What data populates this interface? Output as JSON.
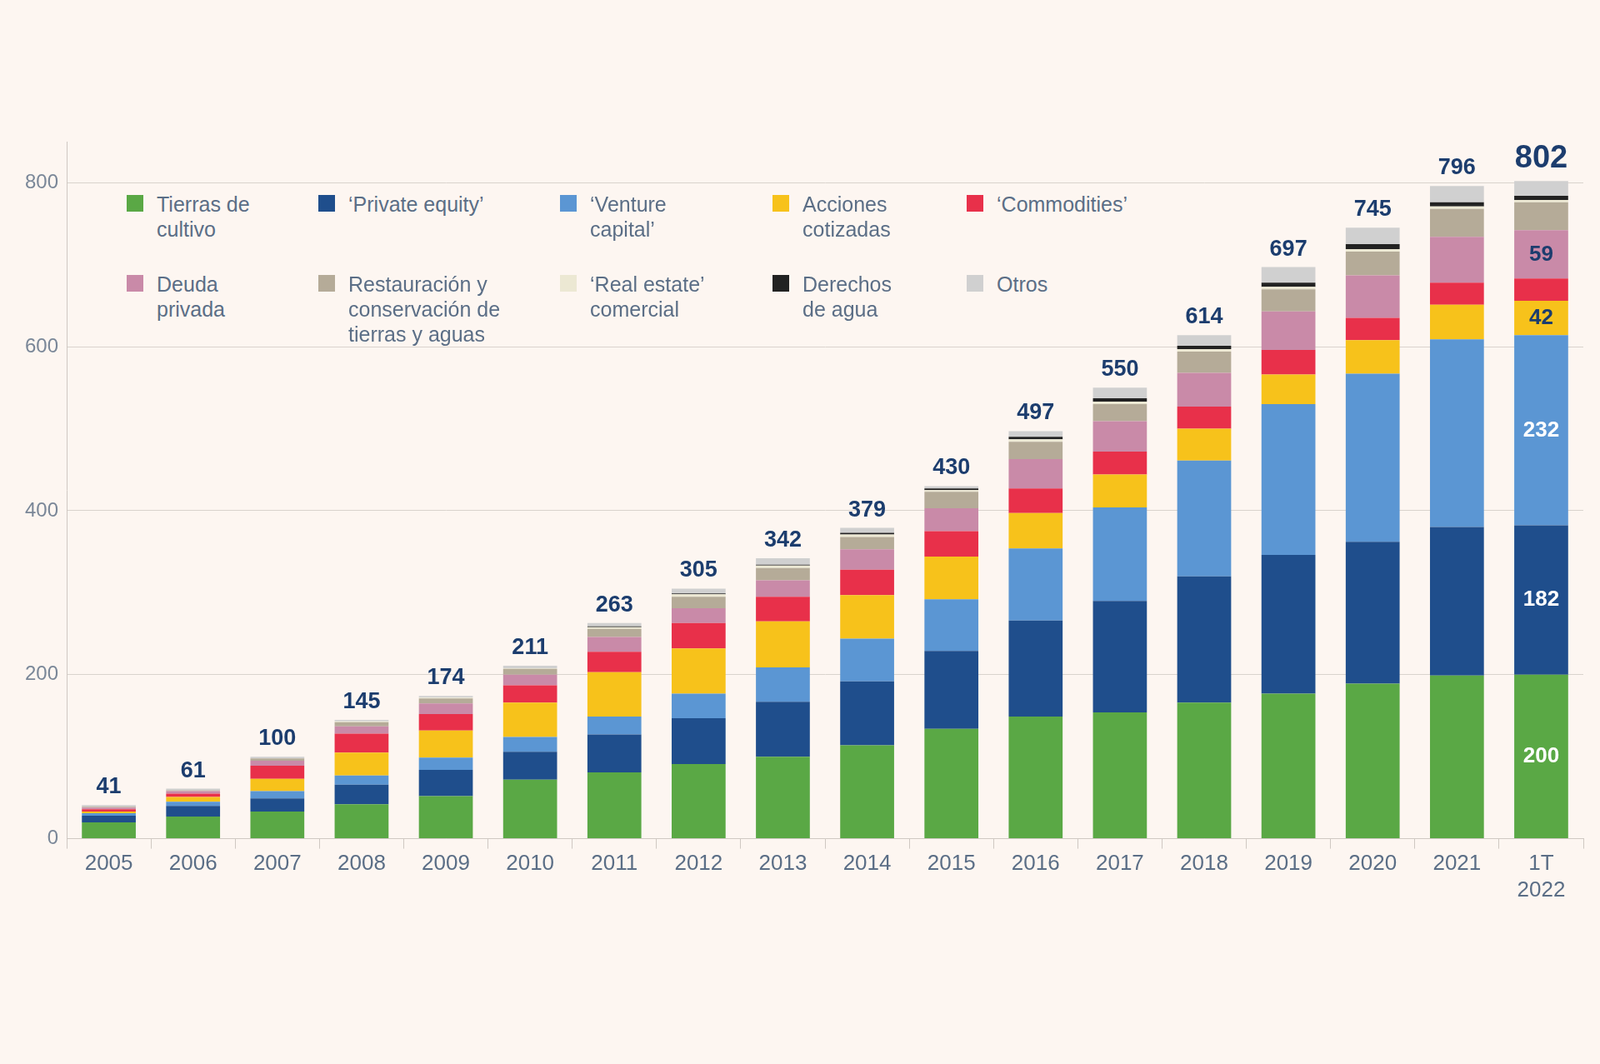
{
  "chart_data": {
    "type": "bar",
    "stacked": true,
    "grid": true,
    "legend": "upper left",
    "data_labels": true,
    "categories": [
      "2005",
      "2006",
      "2007",
      "2008",
      "2009",
      "2010",
      "2011",
      "2012",
      "2013",
      "2014",
      "2015",
      "2016",
      "2017",
      "2018",
      "2019",
      "2020",
      "2021",
      "1T 2022"
    ],
    "ylim": [
      0,
      850
    ],
    "yticks": [
      0,
      200,
      400,
      600,
      800
    ],
    "totals": [
      41,
      61,
      100,
      145,
      174,
      211,
      263,
      305,
      342,
      379,
      430,
      497,
      550,
      614,
      697,
      745,
      796,
      802
    ],
    "series": [
      {
        "name": "Tierras de cultivo",
        "color": "#5aa845",
        "values": [
          20,
          27,
          33,
          42,
          52,
          72,
          81,
          91,
          100,
          114,
          134,
          149,
          154,
          166,
          177,
          189,
          199,
          200
        ],
        "value_labels": [
          null,
          null,
          null,
          null,
          null,
          null,
          null,
          null,
          null,
          null,
          null,
          null,
          null,
          null,
          null,
          null,
          null,
          "200"
        ]
      },
      {
        "name": "‘Private equity’",
        "color": "#1f4e8c",
        "values": [
          8,
          13,
          16,
          24,
          32,
          34,
          46,
          56,
          67,
          78,
          95,
          117,
          136,
          154,
          169,
          173,
          181,
          182
        ],
        "value_labels": [
          null,
          null,
          null,
          null,
          null,
          null,
          null,
          null,
          null,
          null,
          null,
          null,
          null,
          null,
          null,
          null,
          null,
          "182"
        ]
      },
      {
        "name": "‘Venture capital’",
        "color": "#5b96d3",
        "values": [
          3,
          5,
          9,
          11,
          15,
          18,
          22,
          30,
          42,
          52,
          63,
          88,
          114,
          141,
          184,
          205,
          229,
          232
        ],
        "value_labels": [
          null,
          null,
          null,
          null,
          null,
          null,
          null,
          null,
          null,
          null,
          null,
          null,
          null,
          null,
          null,
          null,
          null,
          "232"
        ]
      },
      {
        "name": "Acciones cotizadas",
        "color": "#f7c21b",
        "values": [
          2,
          6,
          15,
          28,
          33,
          42,
          54,
          55,
          56,
          53,
          52,
          43,
          40,
          39,
          36,
          41,
          42,
          42
        ],
        "value_labels": [
          null,
          null,
          null,
          null,
          null,
          null,
          null,
          null,
          null,
          null,
          null,
          null,
          null,
          null,
          null,
          null,
          null,
          "42"
        ]
      },
      {
        "name": "‘Commodities’",
        "color": "#e8304a",
        "values": [
          3,
          4,
          16,
          23,
          20,
          21,
          25,
          31,
          30,
          31,
          31,
          30,
          28,
          27,
          30,
          27,
          27,
          27
        ]
      },
      {
        "name": "Deuda privada",
        "color": "#c98aa8",
        "values": [
          2,
          3,
          6,
          9,
          13,
          13,
          18,
          18,
          20,
          25,
          28,
          36,
          37,
          41,
          47,
          52,
          56,
          59
        ],
        "value_labels": [
          null,
          null,
          null,
          null,
          null,
          null,
          null,
          null,
          null,
          null,
          null,
          null,
          null,
          null,
          null,
          null,
          null,
          "59"
        ]
      },
      {
        "name": "Restauración y conservación de tierras y aguas",
        "color": "#b5ab98",
        "values": [
          1,
          1,
          3,
          5,
          6,
          7,
          10,
          14,
          15,
          15,
          20,
          21,
          21,
          26,
          27,
          29,
          34,
          34
        ]
      },
      {
        "name": "‘Real estate’ comercial",
        "color": "#ece8d3",
        "values": [
          0,
          0,
          0,
          1,
          1,
          1,
          2,
          3,
          3,
          3,
          2,
          3,
          3,
          3,
          3,
          3,
          3,
          3
        ]
      },
      {
        "name": "Derechos de agua",
        "color": "#222222",
        "values": [
          0,
          0,
          0,
          0,
          0,
          0,
          1,
          1,
          1,
          2,
          2,
          3,
          4,
          4,
          5,
          6,
          5,
          5
        ]
      },
      {
        "name": "Otros",
        "color": "#d0d0d0",
        "values": [
          2,
          2,
          2,
          2,
          2,
          3,
          4,
          6,
          8,
          6,
          3,
          7,
          13,
          13,
          19,
          20,
          20,
          18
        ]
      }
    ]
  }
}
